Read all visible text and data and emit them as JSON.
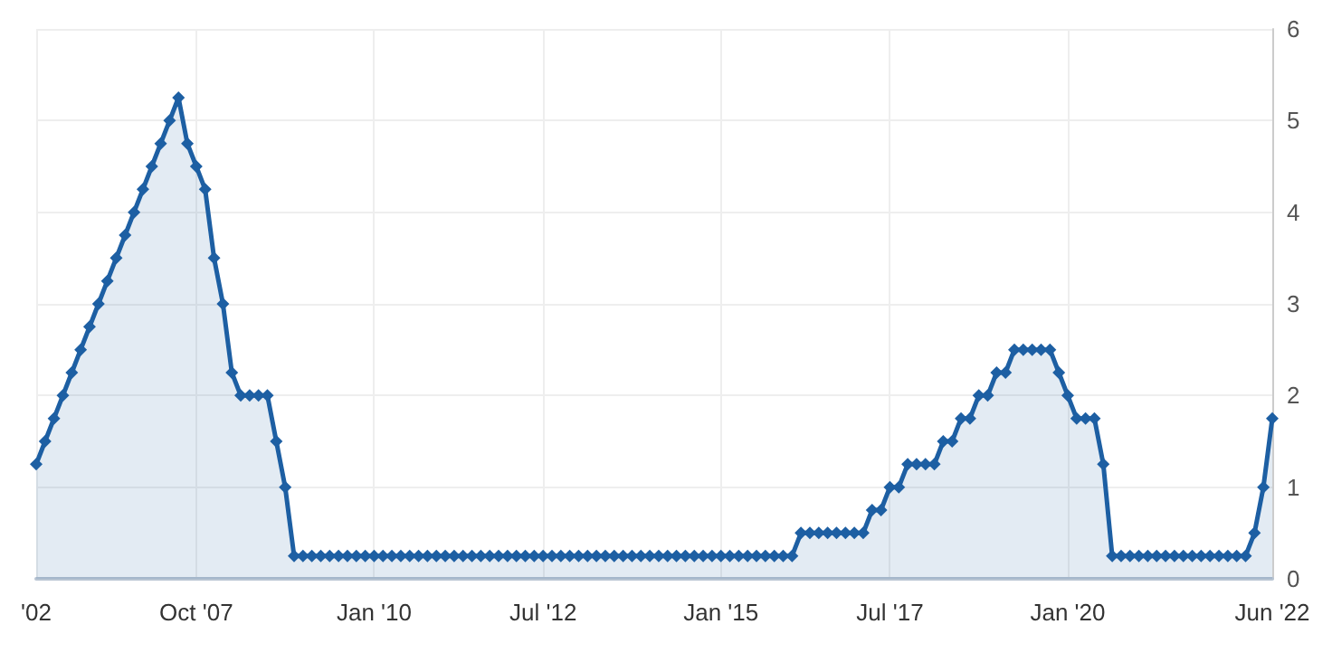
{
  "chart_data": {
    "type": "area",
    "categories": [
      "'02",
      null,
      null,
      null,
      null,
      null,
      null,
      null,
      null,
      null,
      null,
      null,
      null,
      null,
      null,
      null,
      null,
      null,
      "Oct '07",
      null,
      null,
      null,
      null,
      null,
      null,
      null,
      null,
      null,
      null,
      null,
      null,
      null,
      null,
      null,
      null,
      null,
      null,
      null,
      "Jan '10",
      null,
      null,
      null,
      null,
      null,
      null,
      null,
      null,
      null,
      null,
      null,
      null,
      null,
      null,
      null,
      null,
      null,
      null,
      "Jul '12",
      null,
      null,
      null,
      null,
      null,
      null,
      null,
      null,
      null,
      null,
      null,
      null,
      null,
      null,
      null,
      null,
      null,
      null,
      null,
      "Jan '15",
      null,
      null,
      null,
      null,
      null,
      null,
      null,
      null,
      null,
      null,
      null,
      null,
      null,
      null,
      null,
      null,
      null,
      null,
      "Jul '17",
      null,
      null,
      null,
      null,
      null,
      null,
      null,
      null,
      null,
      null,
      null,
      null,
      null,
      null,
      null,
      null,
      null,
      null,
      null,
      "Jan '20",
      null,
      null,
      null,
      null,
      null,
      null,
      null,
      null,
      null,
      null,
      null,
      null,
      null,
      null,
      null,
      null,
      null,
      null,
      null,
      null,
      null,
      null,
      "Jun '22"
    ],
    "series": [
      {
        "color": "#1d5fa3",
        "values": [
          1.25,
          1.5,
          1.75,
          2,
          2.25,
          2.5,
          2.75,
          3,
          3.25,
          3.5,
          3.75,
          4,
          4.25,
          4.5,
          4.75,
          5,
          5.25,
          4.75,
          4.5,
          4.25,
          3.5,
          3,
          2.25,
          2,
          2,
          2,
          2,
          1.5,
          1,
          0.25,
          0.25,
          0.25,
          0.25,
          0.25,
          0.25,
          0.25,
          0.25,
          0.25,
          0.25,
          0.25,
          0.25,
          0.25,
          0.25,
          0.25,
          0.25,
          0.25,
          0.25,
          0.25,
          0.25,
          0.25,
          0.25,
          0.25,
          0.25,
          0.25,
          0.25,
          0.25,
          0.25,
          0.25,
          0.25,
          0.25,
          0.25,
          0.25,
          0.25,
          0.25,
          0.25,
          0.25,
          0.25,
          0.25,
          0.25,
          0.25,
          0.25,
          0.25,
          0.25,
          0.25,
          0.25,
          0.25,
          0.25,
          0.25,
          0.25,
          0.25,
          0.25,
          0.25,
          0.25,
          0.25,
          0.25,
          0.25,
          0.5,
          0.5,
          0.5,
          0.5,
          0.5,
          0.5,
          0.5,
          0.5,
          0.75,
          0.75,
          1,
          1,
          1.25,
          1.25,
          1.25,
          1.25,
          1.5,
          1.5,
          1.75,
          1.75,
          2,
          2,
          2.25,
          2.25,
          2.5,
          2.5,
          2.5,
          2.5,
          2.5,
          2.25,
          2,
          1.75,
          1.75,
          1.75,
          1.25,
          0.25,
          0.25,
          0.25,
          0.25,
          0.25,
          0.25,
          0.25,
          0.25,
          0.25,
          0.25,
          0.25,
          0.25,
          0.25,
          0.25,
          0.25,
          0.25,
          0.5,
          1,
          1.75
        ]
      }
    ],
    "ylim": [
      0,
      6
    ],
    "yticks": [
      0,
      1,
      2,
      3,
      4,
      5,
      6
    ],
    "grid": true,
    "marker": "diamond"
  }
}
